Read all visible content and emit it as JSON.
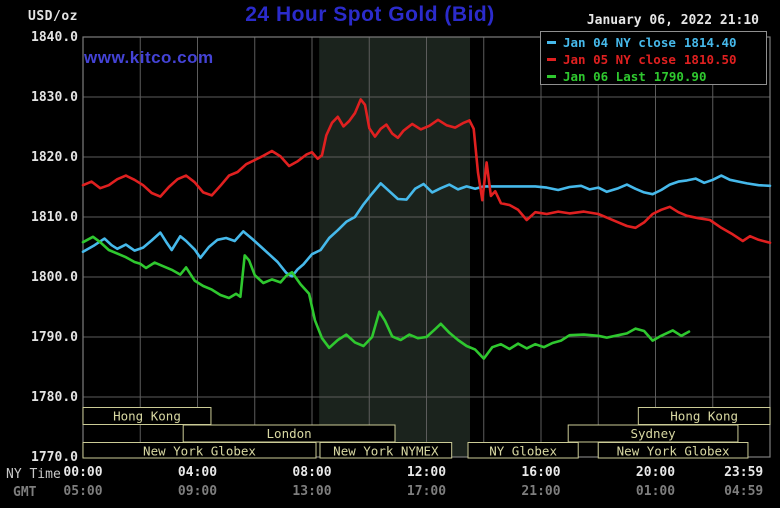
{
  "header": {
    "units_label": "USD/oz",
    "title": "24 Hour Spot Gold (Bid)",
    "datetime": "January 06, 2022 21:10",
    "watermark": "www.kitco.com"
  },
  "legend": {
    "items": [
      {
        "label": "Jan 04 NY close",
        "value": "1814.40",
        "color": "#46B9EB"
      },
      {
        "label": "Jan 05 NY close",
        "value": "1810.50",
        "color": "#E02020"
      },
      {
        "label": "Jan 06 Last",
        "value": "1790.90",
        "color": "#2FC82F"
      }
    ]
  },
  "x_axis": {
    "row_labels": {
      "ny_time": "NY Time",
      "gmt": "GMT"
    }
  },
  "chart_data": {
    "type": "line",
    "title": "24 Hour Spot Gold (Bid)",
    "ylabel": "USD/oz",
    "ylim": [
      1770,
      1840
    ],
    "xlim_hours": [
      0,
      24
    ],
    "grid": {
      "x_step_hours": 2,
      "y_step": 10,
      "color": "#5C5C5C",
      "border_color": "#7D7D7D"
    },
    "legend_position": "top-right",
    "y_ticks": [
      1840,
      1830,
      1820,
      1810,
      1800,
      1790,
      1780,
      1770
    ],
    "x_ticks_ny_time": [
      {
        "t": 0,
        "text": "00:00"
      },
      {
        "t": 4,
        "text": "04:00"
      },
      {
        "t": 8,
        "text": "08:00"
      },
      {
        "t": 12,
        "text": "12:00"
      },
      {
        "t": 16,
        "text": "16:00"
      },
      {
        "t": 20,
        "text": "20:00"
      },
      {
        "t": 23.08,
        "text": "23:59"
      }
    ],
    "x_ticks_gmt": [
      {
        "t": 0,
        "text": "05:00"
      },
      {
        "t": 4,
        "text": "09:00"
      },
      {
        "t": 8,
        "text": "13:00"
      },
      {
        "t": 12,
        "text": "17:00"
      },
      {
        "t": 16,
        "text": "21:00"
      },
      {
        "t": 20,
        "text": "01:00"
      },
      {
        "t": 23.08,
        "text": "04:59"
      }
    ],
    "nymex_shade": {
      "t0": 8.25,
      "t1": 13.52,
      "color": "#1B231D"
    },
    "sessions": {
      "color": "#CBCB96",
      "text_color": "#D8D8A2",
      "rows": [
        [
          {
            "label": "Hong Kong",
            "t0": 0,
            "t1": 4.47
          },
          {
            "label": "Hong Kong",
            "t0": 19.4,
            "t1": 24
          }
        ],
        [
          {
            "label": "London",
            "t0": 3.5,
            "t1": 10.9
          },
          {
            "label": "Sydney",
            "t0": 16.95,
            "t1": 22.88
          }
        ],
        [
          {
            "label": "New York Globex",
            "t0": 0,
            "t1": 8.14
          },
          {
            "label": "New York NYMEX",
            "t0": 8.28,
            "t1": 12.88
          },
          {
            "label": "NY Globex",
            "t0": 13.45,
            "t1": 17.3
          },
          {
            "label": "New York Globex",
            "t0": 18.0,
            "t1": 23.23
          }
        ]
      ]
    },
    "series": [
      {
        "name": "Jan 04 NY close 1814.40",
        "color": "#46B9EB",
        "points": [
          [
            0,
            1804.2
          ],
          [
            0.4,
            1805.3
          ],
          [
            0.75,
            1806.4
          ],
          [
            1.0,
            1805.3
          ],
          [
            1.2,
            1804.7
          ],
          [
            1.5,
            1805.4
          ],
          [
            1.8,
            1804.4
          ],
          [
            2.1,
            1804.9
          ],
          [
            2.4,
            1806.1
          ],
          [
            2.7,
            1807.4
          ],
          [
            2.9,
            1805.9
          ],
          [
            3.1,
            1804.5
          ],
          [
            3.4,
            1806.8
          ],
          [
            3.6,
            1806.0
          ],
          [
            3.9,
            1804.6
          ],
          [
            4.1,
            1803.2
          ],
          [
            4.4,
            1805.0
          ],
          [
            4.7,
            1806.2
          ],
          [
            5.0,
            1806.5
          ],
          [
            5.3,
            1806.0
          ],
          [
            5.6,
            1807.6
          ],
          [
            5.9,
            1806.4
          ],
          [
            6.2,
            1805.1
          ],
          [
            6.5,
            1803.8
          ],
          [
            6.8,
            1802.5
          ],
          [
            7.1,
            1800.7
          ],
          [
            7.3,
            1800.1
          ],
          [
            7.5,
            1801.3
          ],
          [
            7.7,
            1802.1
          ],
          [
            8.0,
            1803.8
          ],
          [
            8.3,
            1804.5
          ],
          [
            8.6,
            1806.5
          ],
          [
            8.9,
            1807.8
          ],
          [
            9.2,
            1809.2
          ],
          [
            9.5,
            1810.0
          ],
          [
            9.8,
            1812.1
          ],
          [
            10.1,
            1813.9
          ],
          [
            10.4,
            1815.6
          ],
          [
            10.7,
            1814.3
          ],
          [
            11.0,
            1813.0
          ],
          [
            11.3,
            1812.9
          ],
          [
            11.6,
            1814.7
          ],
          [
            11.9,
            1815.5
          ],
          [
            12.2,
            1814.1
          ],
          [
            12.5,
            1814.8
          ],
          [
            12.8,
            1815.4
          ],
          [
            13.1,
            1814.6
          ],
          [
            13.4,
            1815.1
          ],
          [
            13.7,
            1814.7
          ],
          [
            14.0,
            1815.1
          ],
          [
            14.6,
            1815.1
          ],
          [
            15.2,
            1815.1
          ],
          [
            15.8,
            1815.1
          ],
          [
            16.2,
            1814.9
          ],
          [
            16.6,
            1814.5
          ],
          [
            17.0,
            1815.0
          ],
          [
            17.4,
            1815.2
          ],
          [
            17.7,
            1814.6
          ],
          [
            18.0,
            1814.9
          ],
          [
            18.3,
            1814.2
          ],
          [
            18.7,
            1814.8
          ],
          [
            19.0,
            1815.4
          ],
          [
            19.3,
            1814.7
          ],
          [
            19.6,
            1814.1
          ],
          [
            19.9,
            1813.8
          ],
          [
            20.2,
            1814.5
          ],
          [
            20.5,
            1815.4
          ],
          [
            20.8,
            1815.9
          ],
          [
            21.1,
            1816.1
          ],
          [
            21.4,
            1816.4
          ],
          [
            21.7,
            1815.7
          ],
          [
            22.0,
            1816.2
          ],
          [
            22.3,
            1816.9
          ],
          [
            22.6,
            1816.2
          ],
          [
            22.9,
            1815.9
          ],
          [
            23.2,
            1815.6
          ],
          [
            23.6,
            1815.3
          ],
          [
            24,
            1815.2
          ]
        ]
      },
      {
        "name": "Jan 05 NY close 1810.50",
        "color": "#E02020",
        "points": [
          [
            0,
            1815.3
          ],
          [
            0.3,
            1815.9
          ],
          [
            0.6,
            1814.8
          ],
          [
            0.9,
            1815.3
          ],
          [
            1.2,
            1816.3
          ],
          [
            1.5,
            1816.9
          ],
          [
            1.8,
            1816.2
          ],
          [
            2.1,
            1815.3
          ],
          [
            2.4,
            1814.0
          ],
          [
            2.7,
            1813.4
          ],
          [
            3.0,
            1815.0
          ],
          [
            3.3,
            1816.3
          ],
          [
            3.6,
            1816.9
          ],
          [
            3.9,
            1815.8
          ],
          [
            4.2,
            1814.1
          ],
          [
            4.5,
            1813.6
          ],
          [
            4.8,
            1815.2
          ],
          [
            5.1,
            1816.9
          ],
          [
            5.4,
            1817.5
          ],
          [
            5.7,
            1818.8
          ],
          [
            6.0,
            1819.5
          ],
          [
            6.3,
            1820.2
          ],
          [
            6.6,
            1821.0
          ],
          [
            6.9,
            1820.1
          ],
          [
            7.2,
            1818.5
          ],
          [
            7.5,
            1819.3
          ],
          [
            7.8,
            1820.4
          ],
          [
            8.0,
            1820.8
          ],
          [
            8.2,
            1819.7
          ],
          [
            8.35,
            1820.3
          ],
          [
            8.5,
            1823.6
          ],
          [
            8.7,
            1825.7
          ],
          [
            8.9,
            1826.7
          ],
          [
            9.1,
            1825.1
          ],
          [
            9.3,
            1826.0
          ],
          [
            9.5,
            1827.3
          ],
          [
            9.7,
            1829.6
          ],
          [
            9.85,
            1828.7
          ],
          [
            10.0,
            1824.8
          ],
          [
            10.2,
            1823.4
          ],
          [
            10.4,
            1824.7
          ],
          [
            10.6,
            1825.4
          ],
          [
            10.8,
            1823.9
          ],
          [
            11.0,
            1823.2
          ],
          [
            11.2,
            1824.4
          ],
          [
            11.5,
            1825.5
          ],
          [
            11.8,
            1824.6
          ],
          [
            12.1,
            1825.2
          ],
          [
            12.4,
            1826.2
          ],
          [
            12.7,
            1825.3
          ],
          [
            13.0,
            1824.9
          ],
          [
            13.3,
            1825.7
          ],
          [
            13.5,
            1826.1
          ],
          [
            13.65,
            1824.7
          ],
          [
            13.8,
            1817.4
          ],
          [
            13.95,
            1812.8
          ],
          [
            14.1,
            1819.1
          ],
          [
            14.25,
            1813.5
          ],
          [
            14.4,
            1814.3
          ],
          [
            14.6,
            1812.3
          ],
          [
            14.9,
            1812.0
          ],
          [
            15.2,
            1811.2
          ],
          [
            15.5,
            1809.5
          ],
          [
            15.8,
            1810.8
          ],
          [
            16.2,
            1810.5
          ],
          [
            16.6,
            1810.9
          ],
          [
            17.0,
            1810.6
          ],
          [
            17.5,
            1810.9
          ],
          [
            18.0,
            1810.5
          ],
          [
            18.3,
            1809.9
          ],
          [
            18.6,
            1809.3
          ],
          [
            19.0,
            1808.5
          ],
          [
            19.3,
            1808.2
          ],
          [
            19.6,
            1809.1
          ],
          [
            19.9,
            1810.5
          ],
          [
            20.2,
            1811.2
          ],
          [
            20.5,
            1811.7
          ],
          [
            20.8,
            1810.8
          ],
          [
            21.1,
            1810.2
          ],
          [
            21.5,
            1809.8
          ],
          [
            21.9,
            1809.5
          ],
          [
            22.3,
            1808.2
          ],
          [
            22.7,
            1807.1
          ],
          [
            23.05,
            1806.0
          ],
          [
            23.3,
            1806.8
          ],
          [
            23.6,
            1806.2
          ],
          [
            24,
            1805.7
          ]
        ]
      },
      {
        "name": "Jan 06 Last 1790.90",
        "color": "#2FC82F",
        "points": [
          [
            0,
            1805.8
          ],
          [
            0.35,
            1806.7
          ],
          [
            0.6,
            1805.8
          ],
          [
            0.9,
            1804.5
          ],
          [
            1.2,
            1803.9
          ],
          [
            1.5,
            1803.3
          ],
          [
            1.8,
            1802.5
          ],
          [
            2.0,
            1802.2
          ],
          [
            2.2,
            1801.5
          ],
          [
            2.5,
            1802.4
          ],
          [
            2.8,
            1801.8
          ],
          [
            3.1,
            1801.2
          ],
          [
            3.4,
            1800.4
          ],
          [
            3.6,
            1801.6
          ],
          [
            3.9,
            1799.4
          ],
          [
            4.2,
            1798.5
          ],
          [
            4.5,
            1797.9
          ],
          [
            4.8,
            1797.0
          ],
          [
            5.1,
            1796.5
          ],
          [
            5.35,
            1797.2
          ],
          [
            5.5,
            1796.7
          ],
          [
            5.65,
            1803.6
          ],
          [
            5.8,
            1802.8
          ],
          [
            6.0,
            1800.3
          ],
          [
            6.3,
            1799.0
          ],
          [
            6.6,
            1799.6
          ],
          [
            6.9,
            1799.1
          ],
          [
            7.1,
            1800.2
          ],
          [
            7.3,
            1800.8
          ],
          [
            7.6,
            1798.8
          ],
          [
            7.9,
            1797.2
          ],
          [
            8.1,
            1792.8
          ],
          [
            8.35,
            1789.8
          ],
          [
            8.6,
            1788.2
          ],
          [
            8.9,
            1789.5
          ],
          [
            9.2,
            1790.4
          ],
          [
            9.5,
            1789.1
          ],
          [
            9.8,
            1788.5
          ],
          [
            10.1,
            1790.0
          ],
          [
            10.35,
            1794.2
          ],
          [
            10.55,
            1792.7
          ],
          [
            10.8,
            1790.1
          ],
          [
            11.1,
            1789.5
          ],
          [
            11.4,
            1790.4
          ],
          [
            11.7,
            1789.8
          ],
          [
            12.0,
            1790.0
          ],
          [
            12.3,
            1791.3
          ],
          [
            12.5,
            1792.2
          ],
          [
            12.8,
            1790.7
          ],
          [
            13.1,
            1789.5
          ],
          [
            13.4,
            1788.5
          ],
          [
            13.7,
            1787.9
          ],
          [
            14.0,
            1786.4
          ],
          [
            14.3,
            1788.3
          ],
          [
            14.6,
            1788.8
          ],
          [
            14.9,
            1788.0
          ],
          [
            15.2,
            1788.9
          ],
          [
            15.5,
            1788.1
          ],
          [
            15.8,
            1788.8
          ],
          [
            16.1,
            1788.3
          ],
          [
            16.4,
            1789.0
          ],
          [
            16.7,
            1789.4
          ],
          [
            17.0,
            1790.3
          ],
          [
            17.5,
            1790.4
          ],
          [
            18.0,
            1790.2
          ],
          [
            18.3,
            1789.9
          ],
          [
            18.7,
            1790.3
          ],
          [
            19.0,
            1790.6
          ],
          [
            19.3,
            1791.4
          ],
          [
            19.6,
            1791.0
          ],
          [
            19.9,
            1789.4
          ],
          [
            20.2,
            1790.2
          ],
          [
            20.6,
            1791.1
          ],
          [
            20.9,
            1790.2
          ],
          [
            21.17,
            1790.9
          ]
        ]
      }
    ]
  }
}
